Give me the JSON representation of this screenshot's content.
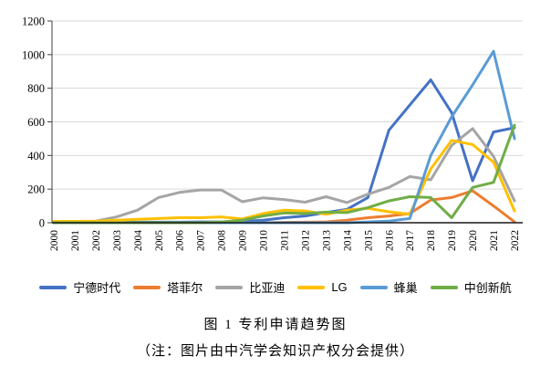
{
  "chart_data": {
    "type": "line",
    "title": "图 1 专利申请趋势图",
    "note": "（注：图片由中汽学会知识产权分会提供）",
    "x": [
      "2000",
      "2001",
      "2002",
      "2003",
      "2004",
      "2005",
      "2006",
      "2007",
      "2008",
      "2009",
      "2010",
      "2011",
      "2012",
      "2013",
      "2014",
      "2015",
      "2016",
      "2017",
      "2018",
      "2019",
      "2020",
      "2021",
      "2022"
    ],
    "series": [
      {
        "id": "catl",
        "name": "宁德时代",
        "color": "#4472C4",
        "values": [
          2,
          2,
          2,
          2,
          3,
          3,
          3,
          5,
          5,
          8,
          15,
          30,
          40,
          60,
          80,
          150,
          550,
          700,
          850,
          655,
          250,
          540,
          565
        ]
      },
      {
        "id": "tafel",
        "name": "塔菲尔",
        "color": "#ED7D31",
        "values": [
          0,
          0,
          0,
          0,
          0,
          0,
          0,
          0,
          0,
          0,
          0,
          2,
          3,
          5,
          15,
          30,
          40,
          55,
          135,
          150,
          190,
          100,
          5
        ]
      },
      {
        "id": "byd",
        "name": "比亚迪",
        "color": "#A5A5A5",
        "values": [
          2,
          2,
          10,
          35,
          75,
          150,
          180,
          195,
          195,
          125,
          148,
          138,
          122,
          155,
          120,
          170,
          210,
          275,
          255,
          460,
          560,
          395,
          130
        ]
      },
      {
        "id": "lg",
        "name": "LG",
        "color": "#FFC000",
        "values": [
          8,
          8,
          10,
          15,
          20,
          25,
          30,
          30,
          35,
          22,
          55,
          75,
          70,
          50,
          75,
          85,
          65,
          50,
          320,
          490,
          465,
          360,
          70
        ]
      },
      {
        "id": "svolt",
        "name": "蜂巢",
        "color": "#5B9BD5",
        "values": [
          0,
          0,
          0,
          0,
          0,
          0,
          0,
          0,
          0,
          0,
          0,
          0,
          0,
          0,
          0,
          5,
          10,
          25,
          400,
          630,
          820,
          1020,
          500
        ]
      },
      {
        "id": "calb",
        "name": "中创新航",
        "color": "#70AD47",
        "values": [
          0,
          0,
          0,
          0,
          0,
          0,
          0,
          0,
          5,
          15,
          40,
          58,
          55,
          63,
          60,
          90,
          130,
          155,
          150,
          30,
          210,
          240,
          580
        ]
      }
    ],
    "ylim": [
      0,
      1200
    ],
    "y_ticks": [
      0,
      200,
      400,
      600,
      800,
      1000,
      1200
    ],
    "grid": "horizontal",
    "gridline_color": "#D9D9D9",
    "axis_color": "#404040",
    "legend_position": "bottom",
    "x_label_rotation": -90
  }
}
